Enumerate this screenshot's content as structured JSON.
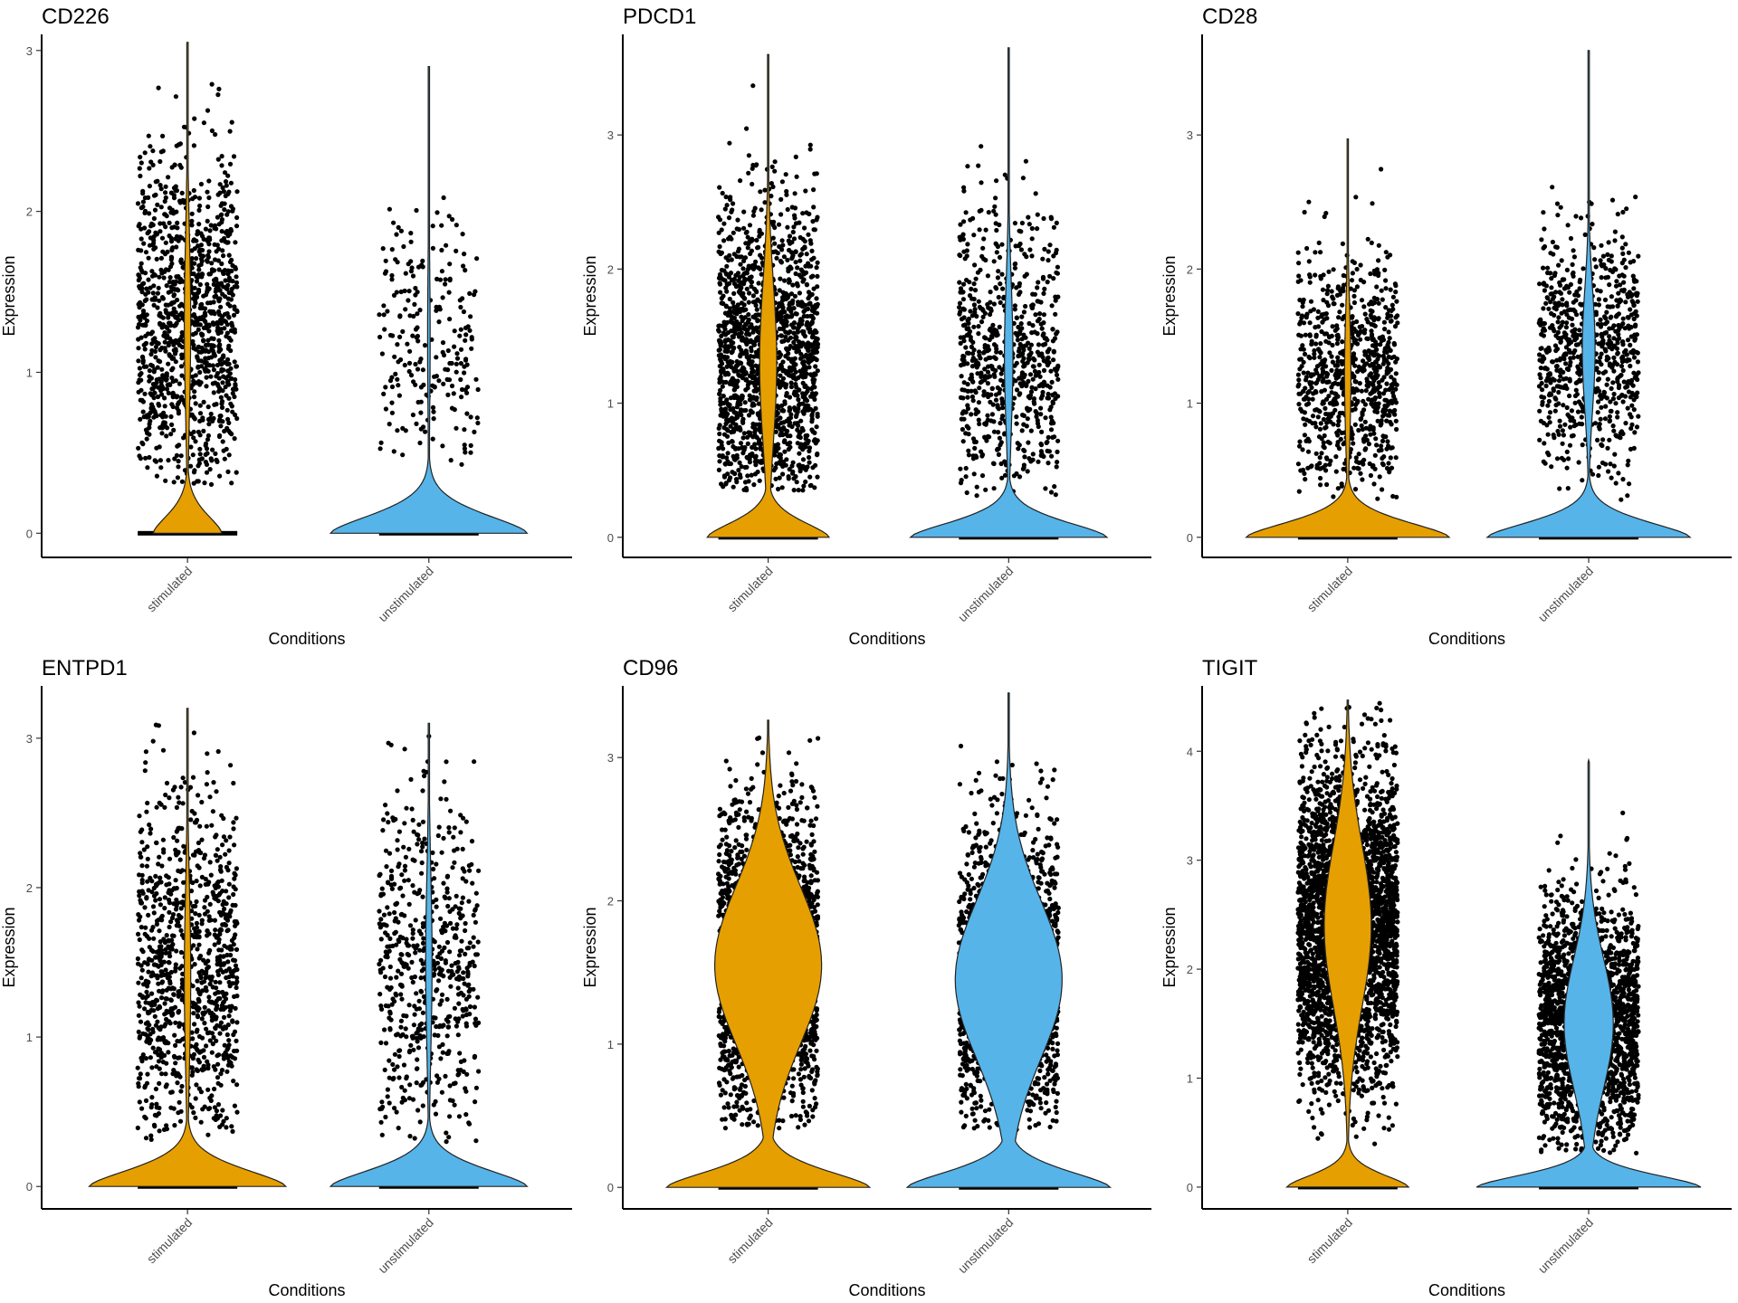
{
  "chart_data": [
    {
      "type": "violin",
      "title": "CD226",
      "xlabel": "Conditions",
      "ylabel": "Expression",
      "categories": [
        "stimulated",
        "unstimulated"
      ],
      "yticks": [
        0,
        1,
        2,
        3
      ],
      "ylim": [
        -0.15,
        3.1
      ],
      "colors": [
        "#E69F00",
        "#56B4E9"
      ],
      "series": [
        {
          "max": 3.05,
          "zero_halfwidth": 0.32,
          "upper_mode": 1.3,
          "upper_spread": 0.55,
          "upper_halfwidth": 0.03,
          "point_min": 0.3,
          "point_max": 2.9,
          "points": 1100
        },
        {
          "max": 2.9,
          "zero_halfwidth": 0.92,
          "upper_mode": 1.2,
          "upper_spread": 0.5,
          "upper_halfwidth": 0.012,
          "point_min": 0.35,
          "point_max": 2.1,
          "points": 230
        }
      ]
    },
    {
      "type": "violin",
      "title": "PDCD1",
      "xlabel": "Conditions",
      "ylabel": "Expression",
      "categories": [
        "stimulated",
        "unstimulated"
      ],
      "yticks": [
        0,
        1,
        2,
        3
      ],
      "ylim": [
        -0.15,
        3.75
      ],
      "colors": [
        "#E69F00",
        "#56B4E9"
      ],
      "series": [
        {
          "max": 3.6,
          "zero_halfwidth": 0.57,
          "upper_mode": 1.3,
          "upper_spread": 0.6,
          "upper_halfwidth": 0.08,
          "point_min": 0.35,
          "point_max": 3.5,
          "points": 1500
        },
        {
          "max": 3.65,
          "zero_halfwidth": 0.92,
          "upper_mode": 1.35,
          "upper_spread": 0.55,
          "upper_halfwidth": 0.04,
          "point_min": 0.3,
          "point_max": 3.0,
          "points": 700
        }
      ]
    },
    {
      "type": "violin",
      "title": "CD28",
      "xlabel": "Conditions",
      "ylabel": "Expression",
      "categories": [
        "stimulated",
        "unstimulated"
      ],
      "yticks": [
        0,
        1,
        2,
        3
      ],
      "ylim": [
        -0.15,
        3.75
      ],
      "colors": [
        "#E69F00",
        "#56B4E9"
      ],
      "series": [
        {
          "max": 2.97,
          "zero_halfwidth": 0.95,
          "upper_mode": 1.2,
          "upper_spread": 0.5,
          "upper_halfwidth": 0.03,
          "point_min": 0.28,
          "point_max": 2.97,
          "points": 800
        },
        {
          "max": 3.63,
          "zero_halfwidth": 0.95,
          "upper_mode": 1.4,
          "upper_spread": 0.45,
          "upper_halfwidth": 0.06,
          "point_min": 0.25,
          "point_max": 2.87,
          "points": 750
        }
      ]
    },
    {
      "type": "violin",
      "title": "ENTPD1",
      "xlabel": "Conditions",
      "ylabel": "Expression",
      "categories": [
        "stimulated",
        "unstimulated"
      ],
      "yticks": [
        0,
        1,
        2,
        3
      ],
      "ylim": [
        -0.15,
        3.35
      ],
      "colors": [
        "#E69F00",
        "#56B4E9"
      ],
      "series": [
        {
          "max": 3.2,
          "zero_halfwidth": 0.92,
          "upper_mode": 1.4,
          "upper_spread": 0.6,
          "upper_halfwidth": 0.03,
          "point_min": 0.3,
          "point_max": 3.2,
          "points": 1000
        },
        {
          "max": 3.1,
          "zero_halfwidth": 0.92,
          "upper_mode": 1.5,
          "upper_spread": 0.6,
          "upper_halfwidth": 0.03,
          "point_min": 0.3,
          "point_max": 3.1,
          "points": 600
        }
      ]
    },
    {
      "type": "violin",
      "title": "CD96",
      "xlabel": "Conditions",
      "ylabel": "Expression",
      "categories": [
        "stimulated",
        "unstimulated"
      ],
      "yticks": [
        0,
        1,
        2,
        3
      ],
      "ylim": [
        -0.15,
        3.5
      ],
      "colors": [
        "#E69F00",
        "#56B4E9"
      ],
      "series": [
        {
          "max": 3.26,
          "zero_halfwidth": 0.95,
          "upper_mode": 1.55,
          "upper_spread": 0.55,
          "upper_halfwidth": 0.5,
          "point_min": 0.4,
          "point_max": 3.26,
          "points": 2200
        },
        {
          "max": 3.45,
          "zero_halfwidth": 0.95,
          "upper_mode": 1.45,
          "upper_spread": 0.55,
          "upper_halfwidth": 0.5,
          "point_min": 0.4,
          "point_max": 3.4,
          "points": 1800
        }
      ]
    },
    {
      "type": "violin",
      "title": "TIGIT",
      "xlabel": "Conditions",
      "ylabel": "Expression",
      "categories": [
        "stimulated",
        "unstimulated"
      ],
      "yticks": [
        0,
        1,
        2,
        3,
        4
      ],
      "ylim": [
        -0.2,
        4.6
      ],
      "colors": [
        "#E69F00",
        "#56B4E9"
      ],
      "series": [
        {
          "max": 4.47,
          "zero_halfwidth": 0.57,
          "upper_mode": 2.4,
          "upper_spread": 0.75,
          "upper_halfwidth": 0.22,
          "point_min": 0.35,
          "point_max": 4.45,
          "points": 3000
        },
        {
          "max": 3.92,
          "zero_halfwidth": 1.05,
          "upper_mode": 1.5,
          "upper_spread": 0.6,
          "upper_halfwidth": 0.23,
          "point_min": 0.3,
          "point_max": 3.9,
          "points": 2000
        }
      ]
    }
  ]
}
